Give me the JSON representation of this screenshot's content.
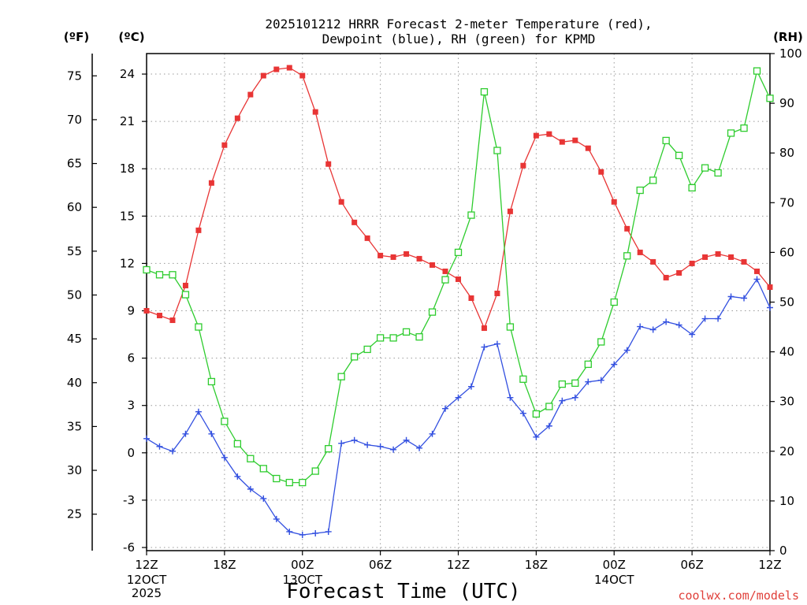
{
  "header": {
    "title_line1": "2025101212 HRRR Forecast 2-meter Temperature (red),",
    "title_line2": "Dewpoint (blue), RH (green) for KPMD"
  },
  "units": {
    "f": "(ºF)",
    "c": "(ºC)",
    "rh": "(RH)"
  },
  "footer": {
    "xlabel": "Forecast Time (UTC)",
    "credit": "coolwx.com/models"
  },
  "chart_data": {
    "type": "line",
    "title": "2025101212 HRRR Forecast 2-meter Temperature (red), Dewpoint (blue), RH (green) for KPMD",
    "xlabel": "Forecast Time (UTC)",
    "x_unit": "forecast hour",
    "xlim": [
      0,
      48
    ],
    "x_ticks": [
      {
        "hour": 0,
        "label": "12Z",
        "sub": [
          "12OCT",
          "2025"
        ]
      },
      {
        "hour": 6,
        "label": "18Z",
        "sub": []
      },
      {
        "hour": 12,
        "label": "00Z",
        "sub": [
          "13OCT"
        ]
      },
      {
        "hour": 18,
        "label": "06Z",
        "sub": []
      },
      {
        "hour": 24,
        "label": "12Z",
        "sub": []
      },
      {
        "hour": 30,
        "label": "18Z",
        "sub": []
      },
      {
        "hour": 36,
        "label": "00Z",
        "sub": [
          "14OCT"
        ]
      },
      {
        "hour": 42,
        "label": "06Z",
        "sub": []
      },
      {
        "hour": 48,
        "label": "12Z",
        "sub": []
      }
    ],
    "y_celsius": {
      "lim": [
        -6.2,
        25.3
      ],
      "ticks": [
        -6,
        -3,
        0,
        3,
        6,
        9,
        12,
        15,
        18,
        21,
        24
      ]
    },
    "y_fahrenheit": {
      "ticks": [
        25,
        30,
        35,
        40,
        45,
        50,
        55,
        60,
        65,
        70,
        75
      ]
    },
    "y_rh": {
      "lim": [
        0,
        100
      ],
      "ticks": [
        0,
        10,
        20,
        30,
        40,
        50,
        60,
        70,
        80,
        90,
        100
      ]
    },
    "grid": true,
    "series": [
      {
        "name": "Temperature",
        "color": "#e83535",
        "marker": "filled-square",
        "axis": "celsius",
        "values": [
          9.0,
          8.7,
          8.4,
          10.6,
          14.1,
          17.1,
          19.5,
          21.2,
          22.7,
          23.9,
          24.3,
          24.4,
          23.9,
          21.6,
          18.3,
          15.9,
          14.6,
          13.6,
          12.5,
          12.4,
          12.6,
          12.3,
          11.9,
          11.5,
          11.0,
          9.8,
          7.9,
          10.1,
          15.3,
          18.2,
          20.1,
          20.2,
          19.7,
          19.8,
          19.3,
          17.8,
          15.9,
          14.2,
          12.7,
          12.1,
          11.1,
          11.4,
          12.0,
          12.4,
          12.6,
          12.4,
          12.1,
          11.5,
          10.5
        ]
      },
      {
        "name": "Dewpoint",
        "color": "#3350e0",
        "marker": "plus",
        "axis": "celsius",
        "values": [
          0.9,
          0.4,
          0.1,
          1.2,
          2.6,
          1.2,
          -0.3,
          -1.5,
          -2.3,
          -2.9,
          -4.2,
          -5.0,
          -5.2,
          -5.1,
          -5.0,
          0.6,
          0.8,
          0.5,
          0.4,
          0.2,
          0.8,
          0.3,
          1.2,
          2.8,
          3.5,
          4.2,
          6.7,
          6.9,
          3.5,
          2.5,
          1.0,
          1.7,
          3.3,
          3.5,
          4.5,
          4.6,
          5.6,
          6.5,
          8.0,
          7.8,
          8.3,
          8.1,
          7.5,
          8.5,
          8.5,
          9.9,
          9.8,
          11.0,
          9.2
        ]
      },
      {
        "name": "RH",
        "color": "#2ecc2e",
        "marker": "open-square",
        "axis": "rh",
        "values": [
          56.5,
          55.5,
          55.5,
          51.5,
          45.0,
          34.0,
          26.0,
          21.5,
          18.5,
          16.5,
          14.5,
          13.7,
          13.7,
          16.0,
          20.5,
          35.0,
          39.0,
          40.5,
          42.8,
          42.8,
          44.0,
          43.0,
          48.0,
          54.5,
          60.0,
          67.5,
          92.3,
          80.5,
          45.0,
          34.5,
          27.5,
          29.0,
          33.5,
          33.7,
          37.5,
          42.0,
          50.0,
          59.3,
          72.5,
          74.5,
          82.5,
          79.5,
          73.0,
          77.0,
          76.0,
          84.0,
          85.0,
          96.5,
          91.0
        ]
      }
    ]
  }
}
